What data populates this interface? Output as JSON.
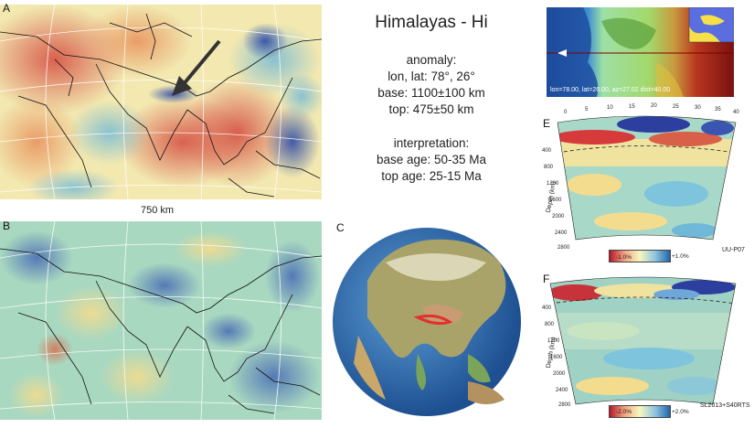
{
  "panel_letters": {
    "a": "A",
    "b": "B",
    "c": "C",
    "e": "E",
    "f": "F"
  },
  "title": "Himalayas - Hi",
  "anomaly": {
    "heading": "anomaly:",
    "lonlat": "lon, lat: 78°, 26°",
    "base": "base: 1100±100 km",
    "top": "top: 475±50 km"
  },
  "interpretation": {
    "heading": "interpretation:",
    "base_age": "base age: 50-35 Ma",
    "top_age": "top age: 25-15 Ma"
  },
  "scale_label": "750 km",
  "location_map_text": "lon=78.00, lat=26.00, az=27.02 dist=40.00",
  "section_e": {
    "x_ticks": [
      "0",
      "5",
      "10",
      "15",
      "20",
      "25",
      "30",
      "35",
      "40"
    ],
    "depth_ticks": [
      "400",
      "800",
      "1200",
      "1600",
      "2000",
      "2400",
      "2800"
    ],
    "depth_label": "Depth (km)",
    "cbar_min": "-1.0%",
    "cbar_max": "+1.0%",
    "model": "UU-P07"
  },
  "section_f": {
    "depth_ticks": [
      "400",
      "800",
      "1200",
      "1600",
      "2000",
      "2400",
      "2800"
    ],
    "depth_label": "Depth (km)",
    "cbar_min": "-2.0%",
    "cbar_max": "+2.0%",
    "model": "SL2013+S40RTS"
  },
  "colors": {
    "slow_red": "#c8323a",
    "fast_blue": "#2c3f9e",
    "neutral_yellow": "#f3efb0",
    "green": "#9fd2a6",
    "ocean": "#2f6fb6"
  }
}
